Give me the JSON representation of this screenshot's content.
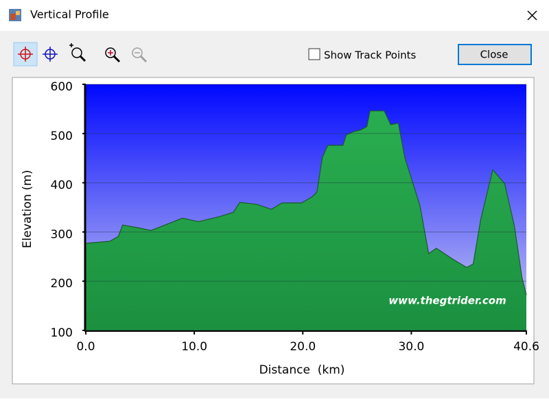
{
  "window": {
    "title": "Vertical Profile"
  },
  "toolbar": {
    "show_track_points": "Show Track Points",
    "close_button": "Close"
  },
  "chart_data": {
    "type": "area",
    "xlabel": "Distance  (km)",
    "ylabel": "Elevation (m)",
    "annotation": "www.thegtrider.com",
    "x": [
      0,
      2.2,
      3.0,
      3.4,
      4.7,
      6.0,
      7.3,
      8.9,
      10.4,
      12.3,
      13.6,
      14.2,
      15.8,
      17.1,
      18.1,
      19.9,
      20.9,
      21.3,
      21.8,
      22.3,
      23.7,
      24.0,
      24.7,
      25.3,
      25.9,
      26.2,
      27.5,
      28.1,
      28.8,
      29.4,
      30.0,
      30.8,
      31.6,
      32.3,
      33.8,
      35.1,
      35.7,
      36.4,
      37.5,
      38.6,
      39.5,
      40.2,
      40.6
    ],
    "values": [
      277,
      281,
      291,
      314,
      309,
      303,
      314,
      328,
      321,
      331,
      340,
      360,
      356,
      346,
      359,
      359,
      372,
      381,
      451,
      476,
      476,
      497,
      504,
      507,
      514,
      546,
      546,
      518,
      521,
      451,
      409,
      353,
      256,
      267,
      245,
      228,
      235,
      326,
      426,
      398,
      312,
      207,
      172
    ],
    "color": "#22a84a",
    "xlim": [
      0,
      40.6
    ],
    "xticks": [
      {
        "value": 0,
        "label": "0.0"
      },
      {
        "value": 10,
        "label": "10.0"
      },
      {
        "value": 20,
        "label": "20.0"
      },
      {
        "value": 30,
        "label": "30.0"
      },
      40.6
    ],
    "ylim": [
      100,
      600
    ],
    "yticks": [
      100,
      200,
      300,
      400,
      500,
      600
    ],
    "grid": true
  }
}
